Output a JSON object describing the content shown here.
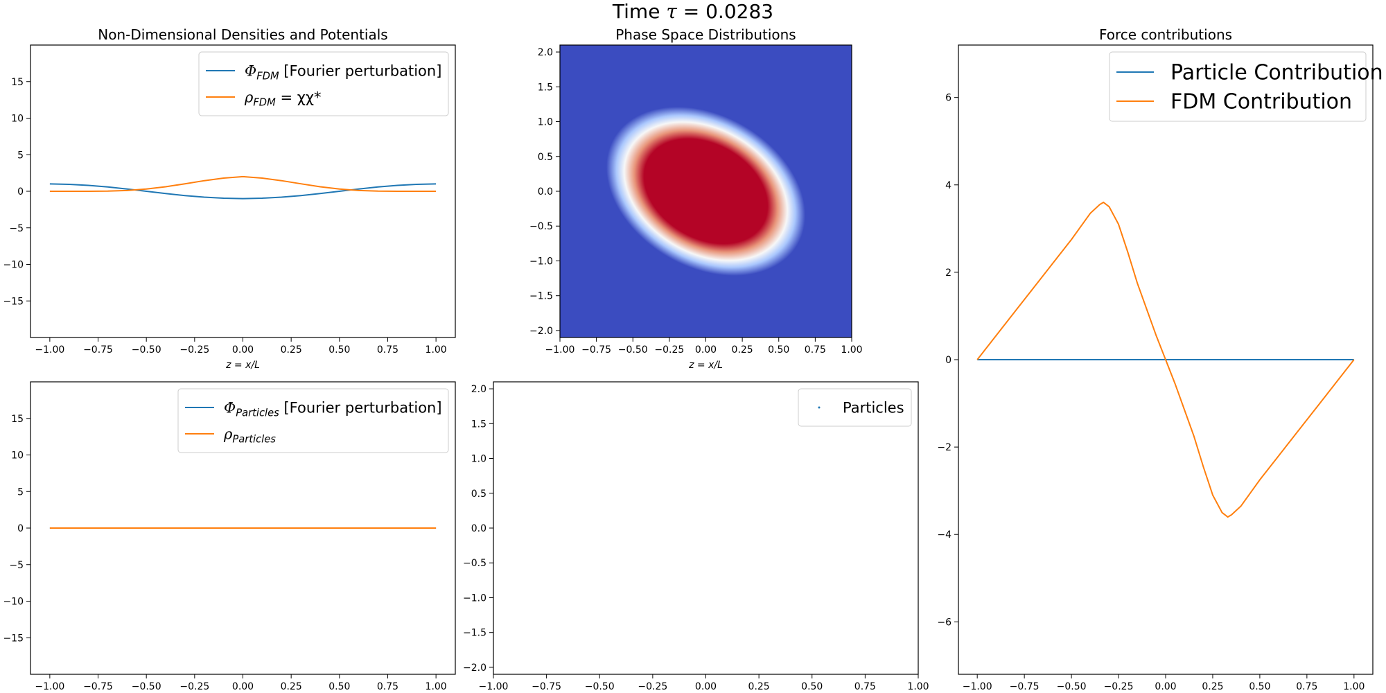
{
  "figure": {
    "suptitle_prefix": "Time ",
    "suptitle_symbol": "τ",
    "suptitle_suffix": " = 0.0283"
  },
  "chart_data": [
    {
      "id": "fdm-densities",
      "type": "line",
      "title": "Non-Dimensional Densities and Potentials",
      "xlabel": "z = x/L",
      "ylabel": "",
      "xlim": [
        -1.1,
        1.1
      ],
      "ylim": [
        -20,
        20
      ],
      "xticks": [
        -1.0,
        -0.75,
        -0.5,
        -0.25,
        0.0,
        0.25,
        0.5,
        0.75,
        1.0
      ],
      "yticks": [
        -15,
        -10,
        -5,
        0,
        5,
        10,
        15
      ],
      "grid": false,
      "legend_position": "upper right",
      "x": [
        -1.0,
        -0.9,
        -0.8,
        -0.7,
        -0.6,
        -0.5,
        -0.4,
        -0.3,
        -0.2,
        -0.1,
        0.0,
        0.1,
        0.2,
        0.3,
        0.4,
        0.5,
        0.6,
        0.7,
        0.8,
        0.9,
        1.0
      ],
      "series": [
        {
          "name": "Φ_FDM [Fourier perturbation]",
          "legend_main": "Φ",
          "legend_sub": "FDM",
          "legend_rest": " [Fourier perturbation]",
          "color": "#1f77b4",
          "values": [
            1.0,
            0.95,
            0.81,
            0.59,
            0.31,
            0.0,
            -0.31,
            -0.59,
            -0.81,
            -0.95,
            -1.0,
            -0.95,
            -0.81,
            -0.59,
            -0.31,
            0.0,
            0.31,
            0.59,
            0.81,
            0.95,
            1.0
          ]
        },
        {
          "name": "ρ_FDM = χχ*",
          "legend_main": "ρ",
          "legend_sub": "FDM",
          "legend_rest": " = χχ*",
          "color": "#ff7f0e",
          "values": [
            0.0,
            0.0,
            0.0,
            0.02,
            0.1,
            0.3,
            0.62,
            1.02,
            1.45,
            1.8,
            2.0,
            1.8,
            1.45,
            1.02,
            0.62,
            0.3,
            0.1,
            0.02,
            0.0,
            0.0,
            0.0
          ]
        }
      ]
    },
    {
      "id": "phase-space-fdm",
      "type": "heatmap",
      "title": "Phase Space Distributions",
      "xlabel": "z = x/L",
      "ylabel": "",
      "xlim": [
        -1.0,
        1.0
      ],
      "ylim": [
        -2.1,
        2.1
      ],
      "xticks": [
        -1.0,
        -0.75,
        -0.5,
        -0.25,
        0.0,
        0.25,
        0.5,
        0.75,
        1.0
      ],
      "yticks": [
        -2.0,
        -1.5,
        -1.0,
        -0.5,
        0.0,
        0.5,
        1.0,
        1.5,
        2.0
      ],
      "colormap": "coolwarm",
      "colors": {
        "low": "#3b4cc0",
        "mid": "#f7f7f7",
        "high": "#b40426"
      },
      "blob": {
        "center_x": 0.0,
        "center_y": 0.0,
        "sigma_major": 0.28,
        "sigma_minor": 0.2,
        "tilt_deg": -30
      }
    },
    {
      "id": "force-contributions",
      "type": "line",
      "title": "Force contributions",
      "xlabel": "",
      "ylabel": "",
      "xlim": [
        -1.1,
        1.1
      ],
      "ylim": [
        -7.2,
        7.2
      ],
      "xticks": [
        -1.0,
        -0.75,
        -0.5,
        -0.25,
        0.0,
        0.25,
        0.5,
        0.75,
        1.0
      ],
      "yticks": [
        -6,
        -4,
        -2,
        0,
        2,
        4,
        6
      ],
      "grid": false,
      "legend_position": "upper right",
      "x": [
        -1.0,
        -0.9,
        -0.8,
        -0.7,
        -0.6,
        -0.5,
        -0.45,
        -0.4,
        -0.35,
        -0.33,
        -0.3,
        -0.25,
        -0.2,
        -0.15,
        -0.1,
        -0.05,
        0.0,
        0.05,
        0.1,
        0.15,
        0.2,
        0.25,
        0.3,
        0.33,
        0.35,
        0.4,
        0.45,
        0.5,
        0.6,
        0.7,
        0.8,
        0.9,
        1.0
      ],
      "series": [
        {
          "name": "Particle Contribution",
          "color": "#1f77b4",
          "values": [
            0,
            0,
            0,
            0,
            0,
            0,
            0,
            0,
            0,
            0,
            0,
            0,
            0,
            0,
            0,
            0,
            0,
            0,
            0,
            0,
            0,
            0,
            0,
            0,
            0,
            0,
            0,
            0,
            0,
            0,
            0,
            0,
            0
          ]
        },
        {
          "name": "FDM Contribution",
          "color": "#ff7f0e",
          "values": [
            0.0,
            0.55,
            1.1,
            1.65,
            2.2,
            2.75,
            3.05,
            3.35,
            3.55,
            3.6,
            3.5,
            3.1,
            2.45,
            1.75,
            1.15,
            0.55,
            0.0,
            -0.55,
            -1.15,
            -1.75,
            -2.45,
            -3.1,
            -3.5,
            -3.6,
            -3.55,
            -3.35,
            -3.05,
            -2.75,
            -2.2,
            -1.65,
            -1.1,
            -0.55,
            0.0
          ]
        }
      ]
    },
    {
      "id": "particle-densities",
      "type": "line",
      "title": "",
      "xlabel": "",
      "ylabel": "",
      "xlim": [
        -1.1,
        1.1
      ],
      "ylim": [
        -20,
        20
      ],
      "xticks": [
        -1.0,
        -0.75,
        -0.5,
        -0.25,
        0.0,
        0.25,
        0.5,
        0.75,
        1.0
      ],
      "yticks": [
        -15,
        -10,
        -5,
        0,
        5,
        10,
        15
      ],
      "grid": false,
      "legend_position": "upper right",
      "x": [
        -1.0,
        1.0
      ],
      "series": [
        {
          "name": "Φ_Particles [Fourier perturbation]",
          "legend_main": "Φ",
          "legend_sub": "Particles",
          "legend_rest": " [Fourier perturbation]",
          "color": "#1f77b4",
          "values": [
            0,
            0
          ]
        },
        {
          "name": "ρ_Particles",
          "legend_main": "ρ",
          "legend_sub": "Particles",
          "legend_rest": "",
          "color": "#ff7f0e",
          "values": [
            0,
            0
          ]
        }
      ]
    },
    {
      "id": "particles-phase",
      "type": "scatter",
      "title": "",
      "xlabel": "",
      "ylabel": "",
      "xlim": [
        -1.0,
        1.0
      ],
      "ylim": [
        -2.1,
        2.1
      ],
      "xticks": [
        -1.0,
        -0.75,
        -0.5,
        -0.25,
        0.0,
        0.25,
        0.5,
        0.75,
        1.0
      ],
      "yticks": [
        -2.0,
        -1.5,
        -1.0,
        -0.5,
        0.0,
        0.5,
        1.0,
        1.5,
        2.0
      ],
      "legend_position": "upper right",
      "series": [
        {
          "name": "Particles",
          "color": "#1f77b4",
          "points": []
        }
      ]
    }
  ]
}
